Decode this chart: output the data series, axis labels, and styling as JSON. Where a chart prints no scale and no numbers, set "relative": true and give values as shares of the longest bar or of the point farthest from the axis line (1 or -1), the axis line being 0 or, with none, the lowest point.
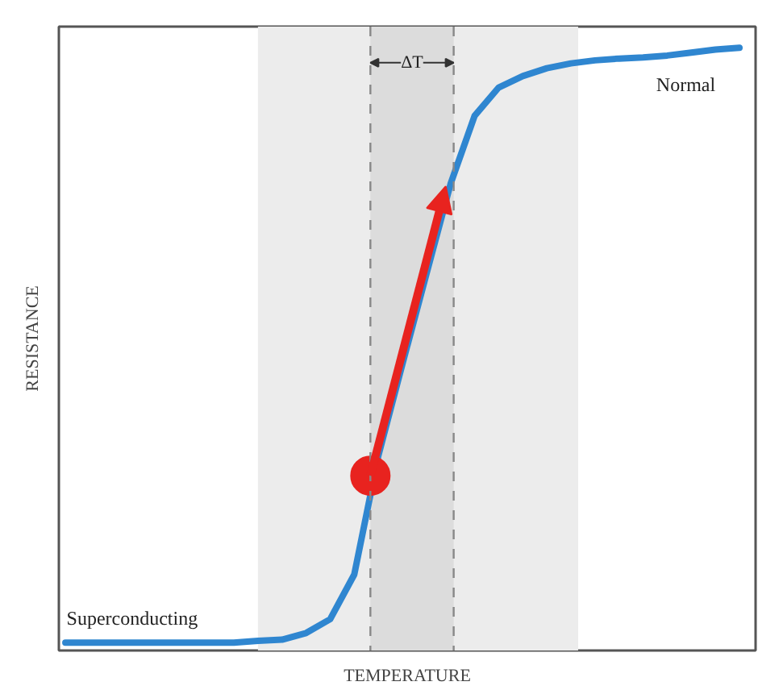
{
  "chart_data": {
    "type": "line",
    "relative": true,
    "xlabel": "TEMPERATURE",
    "ylabel": "RESISTANCE",
    "categories": [
      null,
      null,
      null,
      null,
      null,
      null,
      null,
      null,
      null,
      null,
      null,
      null,
      null,
      null,
      null,
      null,
      null,
      null,
      null,
      null,
      null,
      null,
      null,
      null,
      null,
      null,
      null,
      null,
      null
    ],
    "series": [
      {
        "color": "#2f86d0",
        "values": [
          0.013,
          0.013,
          0.013,
          0.013,
          0.013,
          0.013,
          0.013,
          0.013,
          0.016,
          0.018,
          0.029,
          0.052,
          0.126,
          0.323,
          0.475,
          0.625,
          0.774,
          0.887,
          0.934,
          0.953,
          0.966,
          0.974,
          0.979,
          0.982,
          0.984,
          0.987,
          0.992,
          0.997,
          1
        ]
      }
    ],
    "annotations": [
      "Superconducting",
      "Normal",
      "ΔT"
    ],
    "line_style": "solid"
  }
}
